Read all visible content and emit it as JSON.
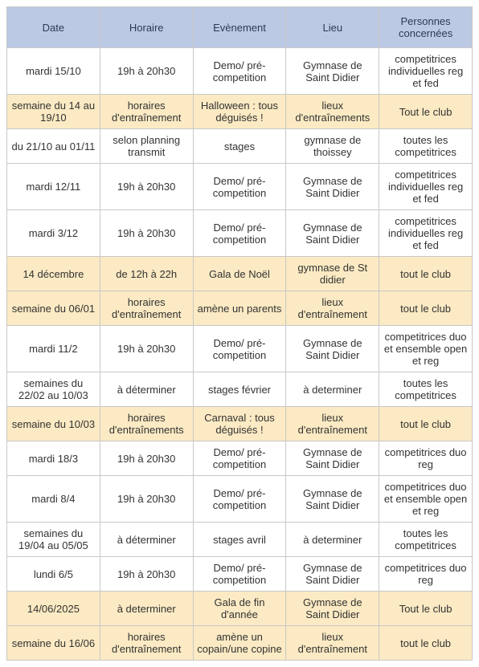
{
  "table": {
    "columns": [
      {
        "key": "date",
        "label": "Date",
        "width": "20%"
      },
      {
        "key": "horaire",
        "label": "Horaire",
        "width": "20%"
      },
      {
        "key": "evenement",
        "label": "Evènement",
        "width": "20%"
      },
      {
        "key": "lieu",
        "label": "Lieu",
        "width": "20%"
      },
      {
        "key": "personnes",
        "label": "Personnes concernées",
        "width": "20%"
      }
    ],
    "header_bg": "#bcc9e4",
    "header_color": "#2b3a55",
    "highlight_bg": "#fbeac3",
    "border_color": "#c8c8c8",
    "font_size": 13,
    "rows": [
      {
        "highlight": false,
        "cells": [
          "mardi 15/10",
          "19h à 20h30",
          "Demo/ pré-competition",
          "Gymnase de Saint Didier",
          "competitrices individuelles reg et fed"
        ]
      },
      {
        "highlight": true,
        "cells": [
          "semaine du 14 au 19/10",
          "horaires d'entraînement",
          "Halloween : tous déguisés !",
          "lieux d'entraînements",
          "Tout le club"
        ]
      },
      {
        "highlight": false,
        "cells": [
          "du 21/10 au 01/11",
          "selon planning transmit",
          "stages",
          "gymnase de thoissey",
          "toutes les competitrices"
        ]
      },
      {
        "highlight": false,
        "cells": [
          "mardi 12/11",
          "19h à 20h30",
          "Demo/ pré-competition",
          "Gymnase de Saint Didier",
          "competitrices individuelles reg et fed"
        ]
      },
      {
        "highlight": false,
        "cells": [
          "mardi 3/12",
          "19h à 20h30",
          "Demo/ pré-competition",
          "Gymnase de Saint Didier",
          "competitrices individuelles reg et fed"
        ]
      },
      {
        "highlight": true,
        "cells": [
          "14 décembre",
          "de 12h à 22h",
          "Gala de Noël",
          "gymnase de St didier",
          "tout le club"
        ]
      },
      {
        "highlight": true,
        "cells": [
          "semaine du 06/01",
          "horaires d'entraînement",
          "amène un parents",
          "lieux d'entraînement",
          "tout le club"
        ]
      },
      {
        "highlight": false,
        "cells": [
          "mardi 11/2",
          "19h à 20h30",
          "Demo/ pré-competition",
          "Gymnase de Saint Didier",
          "competitrices duo et ensemble  open et reg"
        ]
      },
      {
        "highlight": false,
        "cells": [
          "semaines du 22/02 au 10/03",
          "à déterminer",
          "stages février",
          "à determiner",
          "toutes les competitrices"
        ]
      },
      {
        "highlight": true,
        "cells": [
          "semaine du 10/03",
          "horaires d'entraînements",
          "Carnaval : tous déguisés !",
          "lieux d'entraînement",
          "tout le club"
        ]
      },
      {
        "highlight": false,
        "cells": [
          "mardi 18/3",
          "19h à 20h30",
          "Demo/ pré-competition",
          "Gymnase de Saint Didier",
          "competitrices duo reg"
        ]
      },
      {
        "highlight": false,
        "cells": [
          "mardi 8/4",
          "19h à 20h30",
          "Demo/ pré-competition",
          "Gymnase de Saint Didier",
          "competitrices duo et ensemble  open et reg"
        ]
      },
      {
        "highlight": false,
        "cells": [
          "semaines du 19/04 au 05/05",
          "à déterminer",
          "stages avril",
          "à determiner",
          "toutes les competitrices"
        ]
      },
      {
        "highlight": false,
        "cells": [
          "lundi 6/5",
          "19h à 20h30",
          "Demo/ pré-competition",
          "Gymnase de Saint Didier",
          "competitrices duo reg"
        ]
      },
      {
        "highlight": true,
        "cells": [
          "14/06/2025",
          "à determiner",
          "Gala de fin d'année",
          "Gymnase de Saint Didier",
          "Tout le club"
        ]
      },
      {
        "highlight": true,
        "cells": [
          "semaine du 16/06",
          "horaires d'entraînement",
          "amène un copain/une copine",
          "lieux d'entraînement",
          "tout le club"
        ]
      }
    ]
  }
}
